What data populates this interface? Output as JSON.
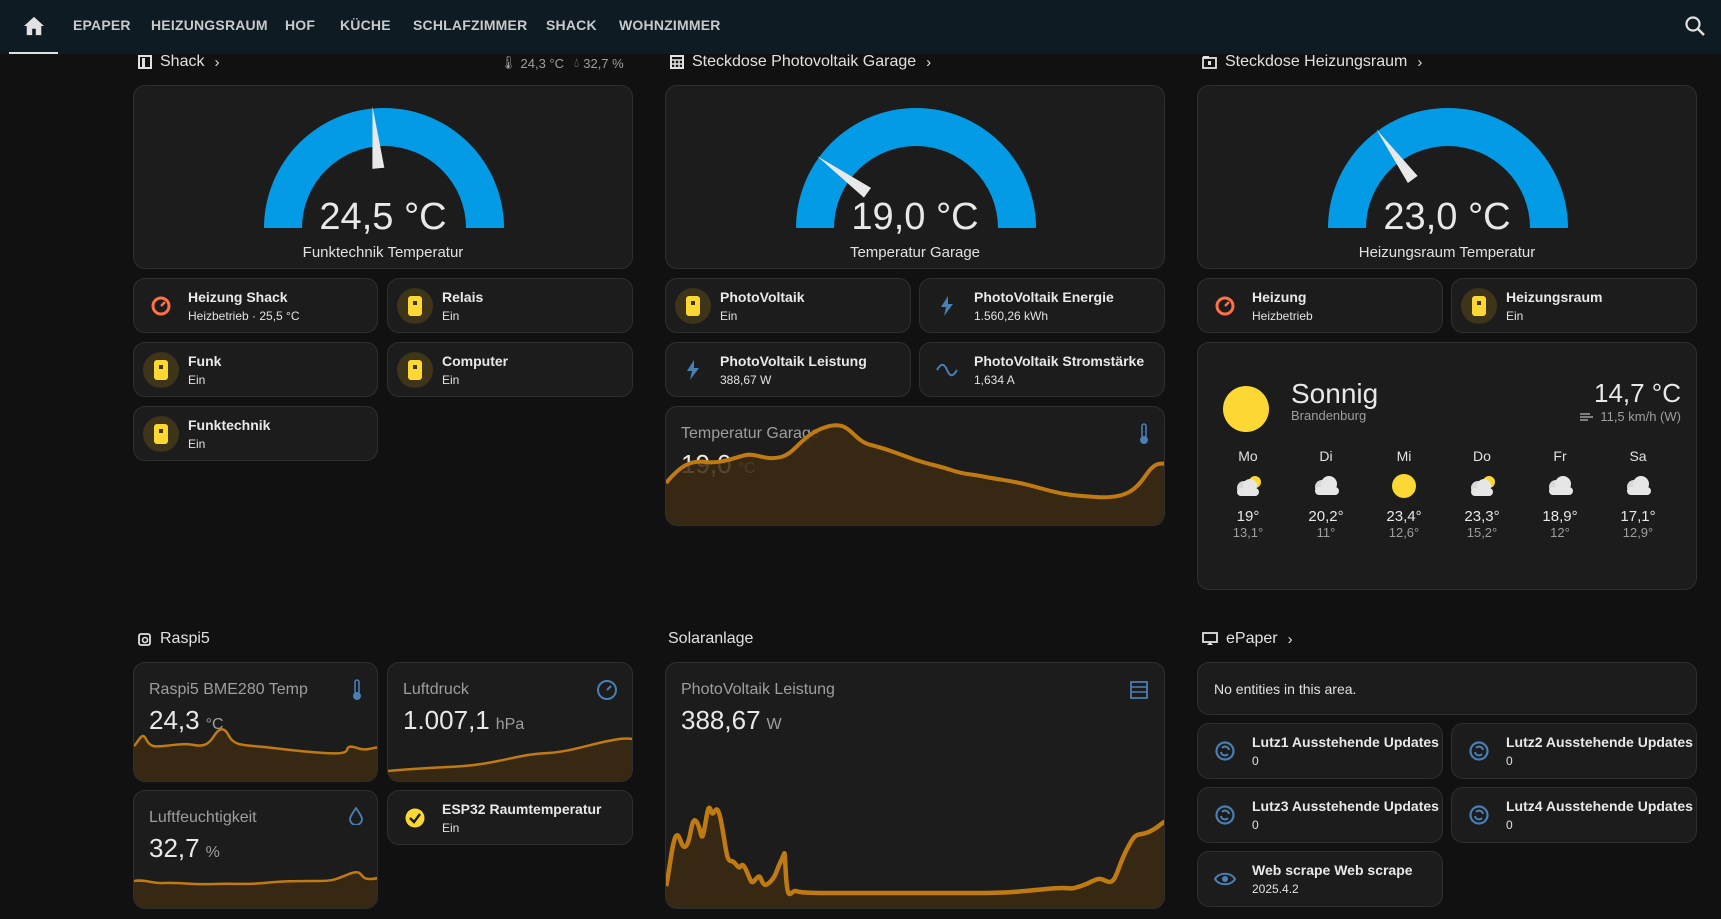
{
  "nav": {
    "tabs": [
      "EPAPER",
      "HEIZUNGSRAUM",
      "HOF",
      "KÜCHE",
      "SCHLAFZIMMER",
      "SHACK",
      "WOHNZIMMER"
    ]
  },
  "shack": {
    "title": "Shack",
    "temp": "24,3 °C",
    "humidity": "32,7 %",
    "gauge": {
      "value": "24,5 °C",
      "name": "Funktechnik Temperatur",
      "level": 0.47
    },
    "tiles": [
      {
        "name": "Heizung Shack",
        "state": "Heizbetrieb · 25,5 °C"
      },
      {
        "name": "Relais",
        "state": "Ein"
      },
      {
        "name": "Funk",
        "state": "Ein"
      },
      {
        "name": "Computer",
        "state": "Ein"
      },
      {
        "name": "Funktechnik",
        "state": "Ein"
      }
    ]
  },
  "garage": {
    "title": "Steckdose Photovoltaik Garage",
    "gauge": {
      "value": "19,0 °C",
      "name": "Temperatur Garage",
      "level": 0.2
    },
    "tiles": [
      {
        "name": "PhotoVoltaik",
        "state": "Ein"
      },
      {
        "name": "PhotoVoltaik Energie",
        "state": "1.560,26 kWh"
      },
      {
        "name": "PhotoVoltaik Leistung",
        "state": "388,67 W"
      },
      {
        "name": "PhotoVoltaik Stromstärke",
        "state": "1,634 A"
      }
    ],
    "sensor": {
      "name": "Temperatur Garage",
      "value": "19,0",
      "unit": "°C"
    }
  },
  "heizungsraum": {
    "title": "Steckdose Heizungsraum",
    "gauge": {
      "value": "23,0 °C",
      "name": "Heizungsraum Temperatur",
      "level": 0.3
    },
    "tiles": [
      {
        "name": "Heizung",
        "state": "Heizbetrieb"
      },
      {
        "name": "Heizungsraum",
        "state": "Ein"
      }
    ]
  },
  "weather": {
    "condition": "Sonnig",
    "location": "Brandenburg",
    "temp": "14,7 °C",
    "wind": "11,5 km/h (W)",
    "forecast": [
      {
        "day": "Mo",
        "hi": "19°",
        "lo": "13,1°",
        "icon": "partly-cloudy"
      },
      {
        "day": "Di",
        "hi": "20,2°",
        "lo": "11°",
        "icon": "cloudy"
      },
      {
        "day": "Mi",
        "hi": "23,4°",
        "lo": "12,6°",
        "icon": "sunny"
      },
      {
        "day": "Do",
        "hi": "23,3°",
        "lo": "15,2°",
        "icon": "partly-cloudy"
      },
      {
        "day": "Fr",
        "hi": "18,9°",
        "lo": "12°",
        "icon": "cloudy"
      },
      {
        "day": "Sa",
        "hi": "17,1°",
        "lo": "12,9°",
        "icon": "cloudy"
      }
    ]
  },
  "raspi": {
    "title": "Raspi5",
    "temp": {
      "name": "Raspi5 BME280 Temp",
      "value": "24,3",
      "unit": "°C"
    },
    "pressure": {
      "name": "Luftdruck",
      "value": "1.007,1",
      "unit": "hPa"
    },
    "humidity": {
      "name": "Luftfeuchtigkeit",
      "value": "32,7",
      "unit": "%"
    },
    "esp": {
      "name": "ESP32 Raumtemperatur",
      "state": "Ein"
    }
  },
  "solar": {
    "title": "Solaranlage",
    "sensor": {
      "name": "PhotoVoltaik Leistung",
      "value": "388,67",
      "unit": "W"
    }
  },
  "epaper": {
    "title": "ePaper",
    "empty": "No entities in this area.",
    "tiles": [
      {
        "name": "Lutz1 Ausstehende Updates",
        "state": "0"
      },
      {
        "name": "Lutz2 Ausstehende Updates",
        "state": "0"
      },
      {
        "name": "Lutz3 Ausstehende Updates",
        "state": "0"
      },
      {
        "name": "Lutz4 Ausstehende Updates",
        "state": "0"
      },
      {
        "name": "Web scrape Web scrape",
        "state": "2025.4.2"
      }
    ]
  },
  "colors": {
    "accent": "#039be5",
    "yellow": "#fdd835",
    "orange": "#ff7043",
    "graph": "#c07a12",
    "blue_icon": "#4a7fb3"
  }
}
